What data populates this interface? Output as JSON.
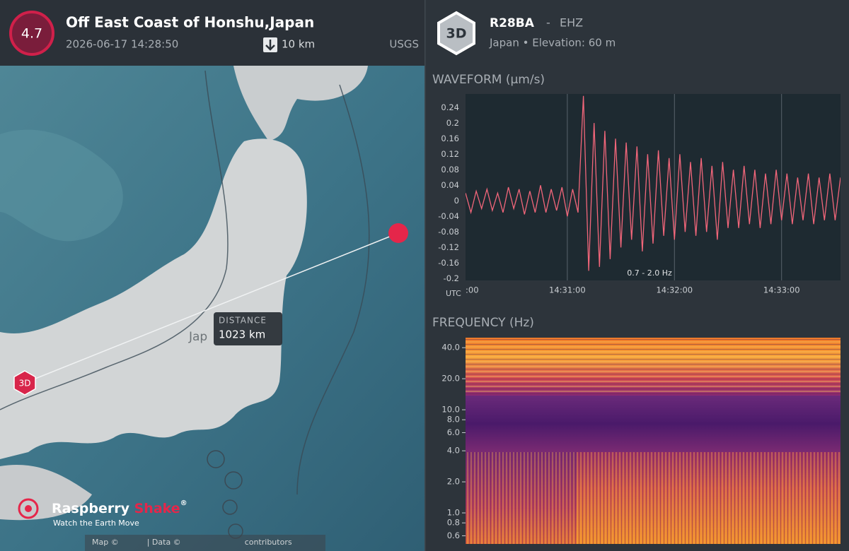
{
  "event": {
    "magnitude": "4.7",
    "title": "Off East Coast of Honshu,Japan",
    "datetime": "2026-06-17 14:28:50",
    "depth": "10 km",
    "source": "USGS"
  },
  "station": {
    "badge": "3D",
    "code": "R28BA",
    "separator": "-",
    "channel": "EHZ",
    "location": "Japan • Elevation: 60 m"
  },
  "map": {
    "distance_label": "DISTANCE",
    "distance": "1023 km",
    "station_marker": "3D",
    "place_label": "Jap",
    "brand_first": "Raspberry",
    "brand_second": "Shake",
    "brand_mark": "®",
    "tagline": "Watch the Earth Move",
    "attribution_map": "Map ©",
    "attribution_data": "| Data ©",
    "attribution_contributors": "contributors"
  },
  "waveform": {
    "type": "line",
    "title": "WAVEFORM (µm/s)",
    "x_axis_label": "UTC",
    "filter_label": "0.7 - 2.0 Hz",
    "color": "#f2667a",
    "xlim": [
      3,
      213
    ],
    "ylim": [
      -0.205,
      0.275
    ],
    "xticks": [
      {
        "value": 0,
        "label": ":00"
      },
      {
        "value": 60,
        "label": "14:31:00"
      },
      {
        "value": 120,
        "label": "14:32:00"
      },
      {
        "value": 180,
        "label": "14:33:00"
      }
    ],
    "yticks": [
      0.24,
      0.2,
      0.16,
      0.12,
      0.08,
      0.04,
      0,
      -0.04,
      -0.08,
      -0.12,
      -0.16,
      -0.2
    ],
    "x": [
      3,
      6,
      9,
      12,
      15,
      18,
      21,
      24,
      27,
      30,
      33,
      36,
      39,
      42,
      45,
      48,
      51,
      54,
      57,
      60,
      63,
      66,
      69,
      72,
      75,
      78,
      81,
      84,
      87,
      90,
      93,
      96,
      99,
      102,
      105,
      108,
      111,
      114,
      117,
      120,
      123,
      126,
      129,
      132,
      135,
      138,
      141,
      144,
      147,
      150,
      153,
      156,
      159,
      162,
      165,
      168,
      171,
      174,
      177,
      180,
      183,
      186,
      189,
      192,
      195,
      198,
      201,
      204,
      207,
      210,
      213
    ],
    "values": [
      0.02,
      -0.03,
      0.025,
      -0.02,
      0.03,
      -0.025,
      0.02,
      -0.03,
      0.035,
      -0.02,
      0.03,
      -0.035,
      0.025,
      -0.03,
      0.04,
      -0.03,
      0.03,
      -0.025,
      0.035,
      -0.04,
      0.03,
      -0.03,
      0.27,
      -0.18,
      0.2,
      -0.17,
      0.18,
      -0.15,
      0.16,
      -0.12,
      0.15,
      -0.1,
      0.14,
      -0.13,
      0.12,
      -0.11,
      0.13,
      -0.09,
      0.11,
      -0.1,
      0.12,
      -0.08,
      0.1,
      -0.09,
      0.11,
      -0.08,
      0.09,
      -0.1,
      0.1,
      -0.07,
      0.08,
      -0.07,
      0.09,
      -0.06,
      0.08,
      -0.07,
      0.07,
      -0.06,
      0.08,
      -0.05,
      0.07,
      -0.06,
      0.06,
      -0.05,
      0.07,
      -0.06,
      0.06,
      -0.05,
      0.07,
      -0.05,
      0.06
    ]
  },
  "frequency": {
    "type": "spectrogram",
    "title": "FREQUENCY (Hz)",
    "ylim": [
      0.5,
      50
    ],
    "log_scale": true,
    "yticks": [
      {
        "value": 40,
        "label": "40.0"
      },
      {
        "value": 20,
        "label": "20.0"
      },
      {
        "value": 10,
        "label": "10.0"
      },
      {
        "value": 8,
        "label": "8.0"
      },
      {
        "value": 6,
        "label": "6.0"
      },
      {
        "value": 4,
        "label": "4.0"
      },
      {
        "value": 2,
        "label": "2.0"
      },
      {
        "value": 1,
        "label": "1.0"
      },
      {
        "value": 0.8,
        "label": "0.8"
      },
      {
        "value": 0.6,
        "label": "0.6"
      }
    ]
  }
}
